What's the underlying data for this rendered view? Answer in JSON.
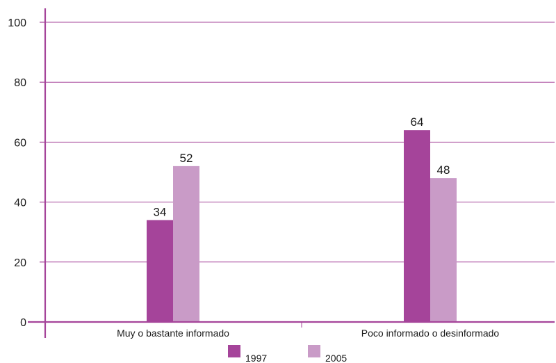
{
  "chart_data": {
    "type": "bar",
    "categories": [
      "Muy o bastante informado",
      "Poco informado o desinformado"
    ],
    "series": [
      {
        "name": "1997",
        "values": [
          34,
          64
        ],
        "color": "#a5449a"
      },
      {
        "name": "2005",
        "values": [
          52,
          48
        ],
        "color": "#c99bc7"
      }
    ],
    "ylim": [
      0,
      100
    ],
    "yticks": [
      0,
      20,
      40,
      60,
      80,
      100
    ],
    "grid": true,
    "legend": "bottom",
    "axis_color": "#a5449a",
    "title": "",
    "xlabel": "",
    "ylabel": ""
  }
}
